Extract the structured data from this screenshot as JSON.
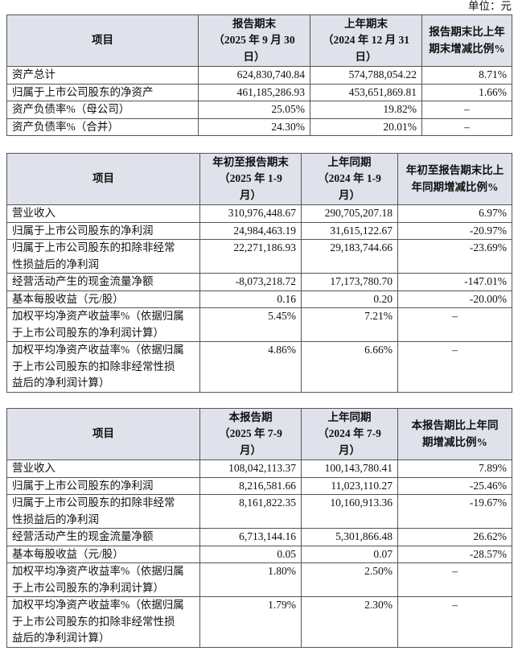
{
  "unit": "单位：元",
  "tables": [
    {
      "header": [
        "项目",
        "报告期末\n（2025 年 9 月 30\n日）",
        "上年期末\n（2024 年 12 月 31\n日）",
        "报告期末比上年\n期末增减比例%"
      ],
      "rows": [
        [
          "资产总计",
          "624,830,740.84",
          "574,788,054.22",
          "8.71%"
        ],
        [
          "归属于上市公司股东的净资产",
          "461,185,286.93",
          "453,651,869.81",
          "1.66%"
        ],
        [
          "资产负债率%（母公司）",
          "25.05%",
          "19.82%",
          "–"
        ],
        [
          "资产负债率%（合并）",
          "24.30%",
          "20.01%",
          "–"
        ]
      ]
    },
    {
      "header": [
        "项目",
        "年初至报告期末\n（2025 年 1-9\n月）",
        "上年同期\n（2024 年 1-9\n月）",
        "年初至报告期末比上\n年同期增减比例%"
      ],
      "rows": [
        [
          "营业收入",
          "310,976,448.67",
          "290,705,207.18",
          "6.97%"
        ],
        [
          "归属于上市公司股东的净利润",
          "24,984,463.19",
          "31,615,122.67",
          "-20.97%"
        ],
        [
          "归属于上市公司股东的扣除非经常\n性损益后的净利润",
          "22,271,186.93",
          "29,183,744.66",
          "-23.69%"
        ],
        [
          "经营活动产生的现金流量净额",
          "-8,073,218.72",
          "17,173,780.70",
          "-147.01%"
        ],
        [
          "基本每股收益（元/股）",
          "0.16",
          "0.20",
          "-20.00%"
        ],
        [
          "加权平均净资产收益率%（依据归属\n于上市公司股东的净利润计算）",
          "5.45%",
          "7.21%",
          "–"
        ],
        [
          "加权平均净资产收益率%（依据归属\n于上市公司股东的扣除非经常性损\n益后的净利润计算）",
          "4.86%",
          "6.66%",
          "–"
        ]
      ]
    },
    {
      "header": [
        "项目",
        "本报告期\n（2025 年 7-9\n月）",
        "上年同期\n（2024 年 7-9\n月）",
        "本报告期比上年同\n期增减比例%"
      ],
      "rows": [
        [
          "营业收入",
          "108,042,113.37",
          "100,143,780.41",
          "7.89%"
        ],
        [
          "归属于上市公司股东的净利润",
          "8,216,581.66",
          "11,023,110.27",
          "-25.46%"
        ],
        [
          "归属于上市公司股东的扣除非经常\n性损益后的净利润",
          "8,161,822.35",
          "10,160,913.36",
          "-19.67%"
        ],
        [
          "经营活动产生的现金流量净额",
          "6,713,144.16",
          "5,301,866.48",
          "26.62%"
        ],
        [
          "基本每股收益（元/股）",
          "0.05",
          "0.07",
          "-28.57%"
        ],
        [
          "加权平均净资产收益率%（依据归属\n于上市公司股东的净利润计算）",
          "1.80%",
          "2.50%",
          "–"
        ],
        [
          "加权平均净资产收益率%（依据归属\n于上市公司股东的扣除非经常性损\n益后的净利润计算）",
          "1.79%",
          "2.30%",
          "–"
        ]
      ]
    }
  ]
}
